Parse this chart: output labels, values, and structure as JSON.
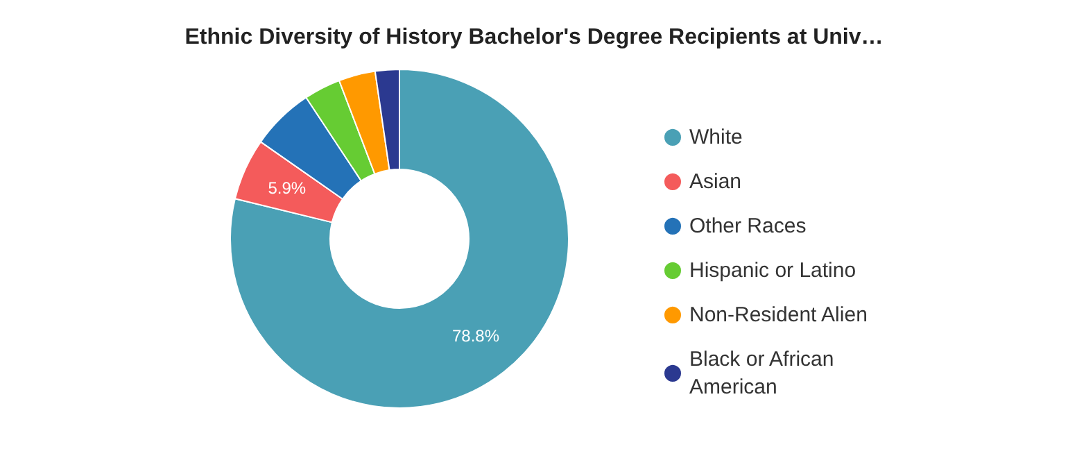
{
  "chart_data": {
    "type": "donut",
    "title": "Ethnic Diversity of History Bachelor's Degree Recipients at Univ…",
    "categories": [
      "White",
      "Asian",
      "Other Races",
      "Hispanic or Latino",
      "Non-Resident Alien",
      "Black or African American"
    ],
    "values": [
      78.8,
      5.9,
      6.0,
      3.5,
      3.5,
      2.3
    ],
    "value_labels": [
      "78.8%",
      "5.9%",
      null,
      null,
      null,
      null
    ],
    "colors": [
      "#4aa0b5",
      "#f45b5b",
      "#2472b7",
      "#66cc33",
      "#ff9900",
      "#2b3990"
    ],
    "legend": "right"
  }
}
